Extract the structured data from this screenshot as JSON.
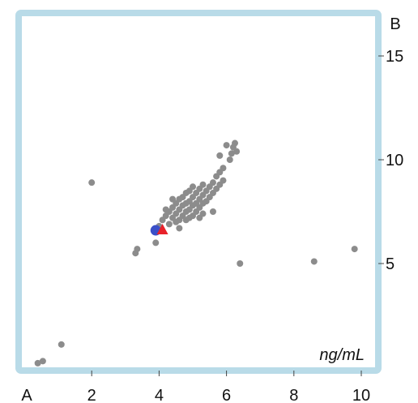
{
  "chart_data": {
    "type": "scatter",
    "x_axis_name": "A",
    "y_axis_name": "B",
    "unit_label": "ng/mL",
    "xlim": [
      0,
      10.5
    ],
    "ylim": [
      0,
      17
    ],
    "x_ticks": [
      2,
      4,
      6,
      8,
      10
    ],
    "y_ticks": [
      5,
      10,
      15
    ],
    "grid": false,
    "frame_color": "#b9dbe8",
    "point_color": "#8c8c8c",
    "points": [
      [
        0.4,
        0.2
      ],
      [
        0.55,
        0.3
      ],
      [
        1.1,
        1.1
      ],
      [
        2.0,
        8.9
      ],
      [
        3.3,
        5.5
      ],
      [
        3.35,
        5.7
      ],
      [
        3.9,
        6.0
      ],
      [
        4.0,
        6.8
      ],
      [
        4.1,
        7.1
      ],
      [
        4.2,
        7.3
      ],
      [
        4.3,
        7.5
      ],
      [
        4.3,
        6.9
      ],
      [
        4.4,
        7.7
      ],
      [
        4.4,
        7.2
      ],
      [
        4.5,
        7.9
      ],
      [
        4.5,
        7.4
      ],
      [
        4.5,
        7.0
      ],
      [
        4.6,
        8.1
      ],
      [
        4.6,
        7.6
      ],
      [
        4.6,
        7.1
      ],
      [
        4.7,
        8.2
      ],
      [
        4.7,
        7.8
      ],
      [
        4.7,
        7.3
      ],
      [
        4.8,
        8.4
      ],
      [
        4.8,
        7.9
      ],
      [
        4.8,
        7.5
      ],
      [
        4.8,
        7.1
      ],
      [
        4.9,
        8.5
      ],
      [
        4.9,
        8.0
      ],
      [
        4.9,
        7.6
      ],
      [
        5.0,
        8.7
      ],
      [
        5.0,
        8.2
      ],
      [
        5.0,
        7.8
      ],
      [
        5.0,
        7.3
      ],
      [
        5.1,
        8.4
      ],
      [
        5.1,
        7.9
      ],
      [
        5.1,
        7.5
      ],
      [
        5.2,
        8.6
      ],
      [
        5.2,
        8.1
      ],
      [
        5.2,
        7.7
      ],
      [
        5.3,
        8.8
      ],
      [
        5.3,
        8.3
      ],
      [
        5.3,
        7.9
      ],
      [
        5.4,
        8.5
      ],
      [
        5.4,
        8.0
      ],
      [
        5.5,
        8.7
      ],
      [
        5.5,
        8.2
      ],
      [
        5.6,
        8.9
      ],
      [
        5.6,
        8.4
      ],
      [
        5.7,
        9.2
      ],
      [
        5.7,
        8.6
      ],
      [
        5.8,
        9.4
      ],
      [
        5.8,
        8.8
      ],
      [
        5.6,
        7.5
      ],
      [
        5.3,
        7.4
      ],
      [
        4.9,
        7.2
      ],
      [
        4.6,
        6.7
      ],
      [
        5.2,
        7.2
      ],
      [
        4.4,
        8.1
      ],
      [
        4.2,
        7.6
      ],
      [
        5.9,
        9.6
      ],
      [
        5.9,
        9.0
      ],
      [
        6.0,
        10.7
      ],
      [
        6.1,
        10.0
      ],
      [
        5.8,
        10.2
      ],
      [
        6.2,
        10.6
      ],
      [
        6.25,
        10.8
      ],
      [
        6.3,
        10.4
      ],
      [
        6.15,
        10.3
      ],
      [
        6.4,
        5.0
      ],
      [
        8.6,
        5.1
      ],
      [
        9.8,
        5.7
      ]
    ],
    "highlight_points": [
      {
        "shape": "circle",
        "x": 3.9,
        "y": 6.6,
        "color": "#3a4fc8"
      },
      {
        "shape": "triangle",
        "x": 4.1,
        "y": 6.6,
        "color": "#e8222a"
      }
    ]
  }
}
